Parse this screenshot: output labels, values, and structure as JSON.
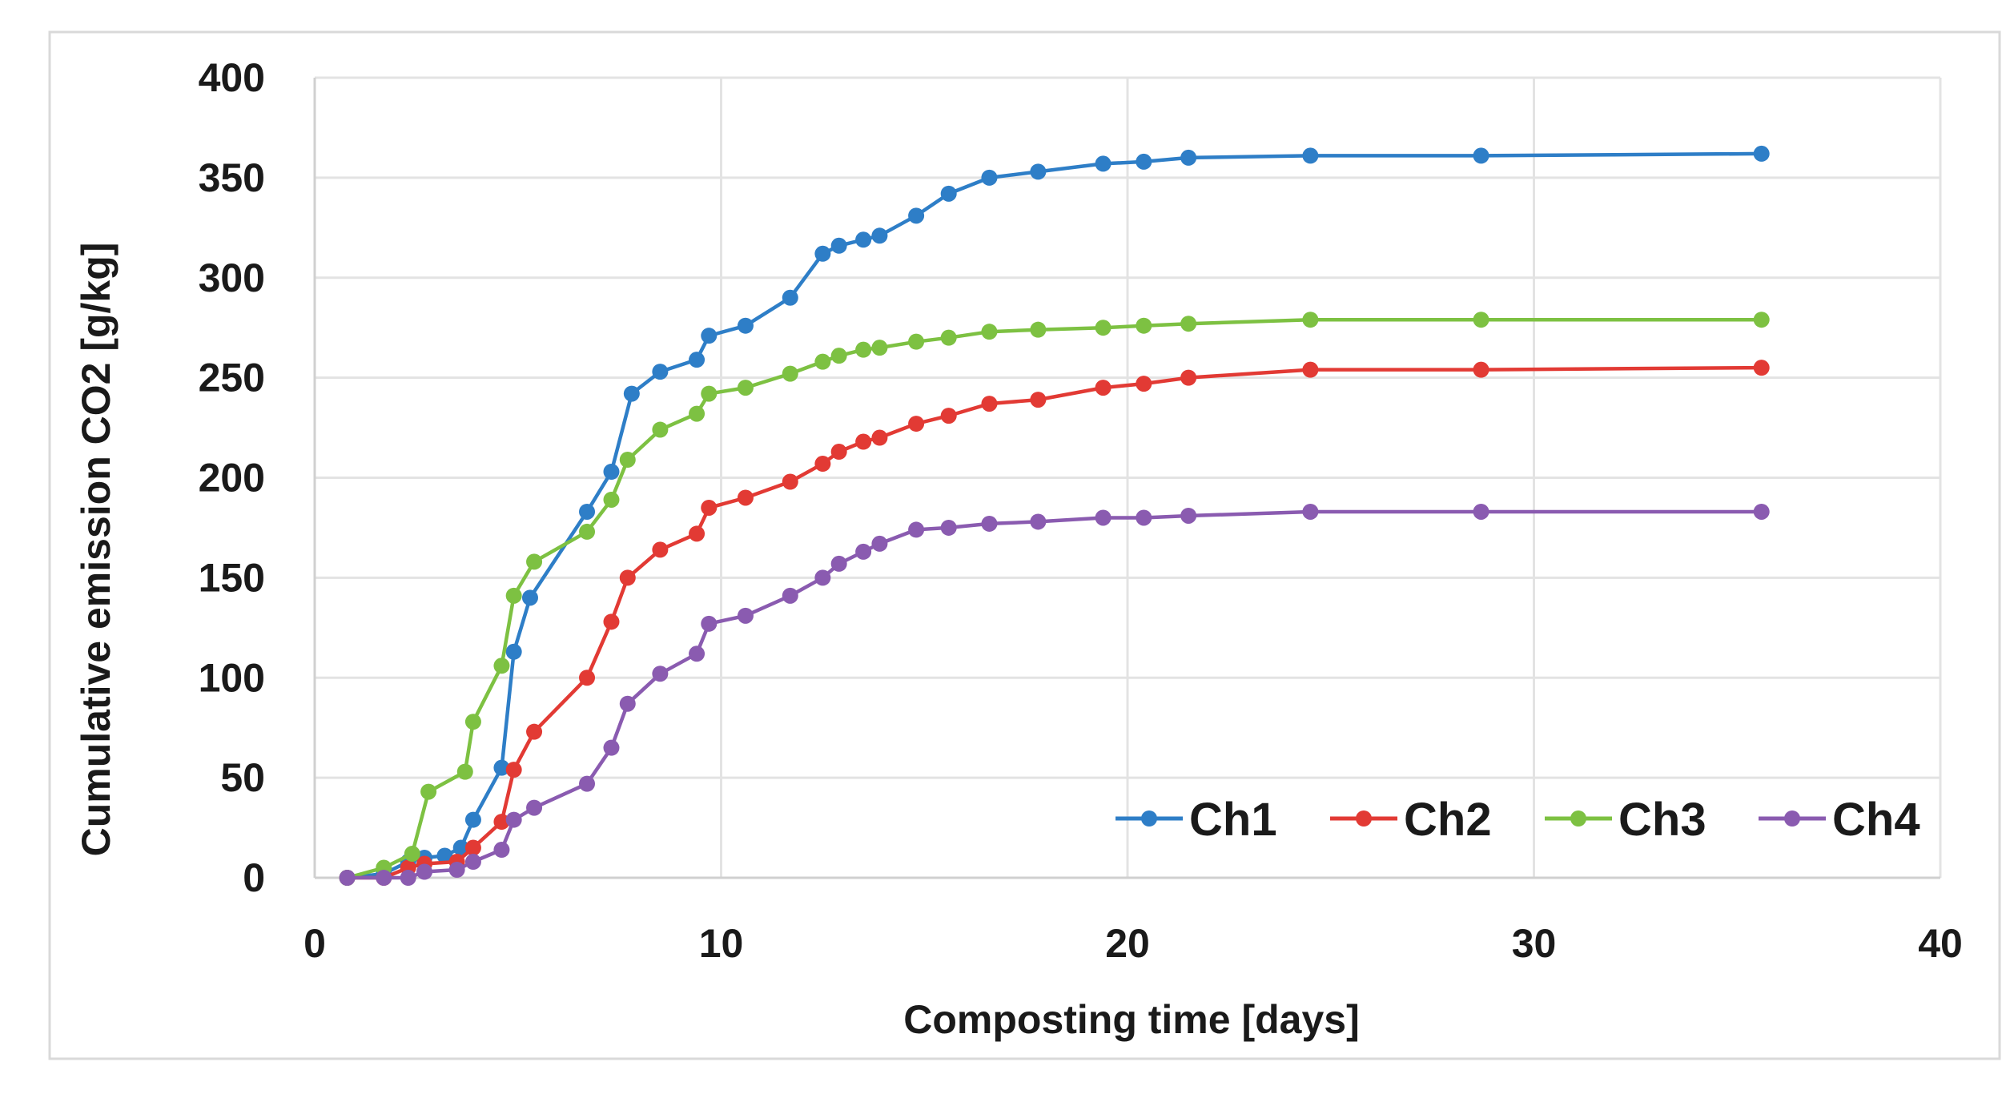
{
  "chart_data": {
    "type": "line",
    "title": "",
    "xlabel": "Composting time [days]",
    "ylabel": "Cumulative emission CO2 [g/kg]",
    "xlim": [
      0,
      40
    ],
    "ylim": [
      0,
      400
    ],
    "x_ticks": [
      0,
      10,
      20,
      30,
      40
    ],
    "y_ticks": [
      0,
      50,
      100,
      150,
      200,
      250,
      300,
      350,
      400
    ],
    "grid": true,
    "legend_position": "bottom-right",
    "series": [
      {
        "name": "Ch1",
        "color": "#2e7ec7",
        "points": [
          [
            0.8,
            0
          ],
          [
            1.7,
            2
          ],
          [
            2.3,
            8
          ],
          [
            2.7,
            10
          ],
          [
            3.2,
            11
          ],
          [
            3.6,
            15
          ],
          [
            3.9,
            29
          ],
          [
            4.6,
            55
          ],
          [
            4.9,
            113
          ],
          [
            5.3,
            140
          ],
          [
            6.7,
            183
          ],
          [
            7.3,
            203
          ],
          [
            7.8,
            242
          ],
          [
            8.5,
            253
          ],
          [
            9.4,
            259
          ],
          [
            9.7,
            271
          ],
          [
            10.6,
            276
          ],
          [
            11.7,
            290
          ],
          [
            12.5,
            312
          ],
          [
            12.9,
            316
          ],
          [
            13.5,
            319
          ],
          [
            13.9,
            321
          ],
          [
            14.8,
            331
          ],
          [
            15.6,
            342
          ],
          [
            16.6,
            350
          ],
          [
            17.8,
            353
          ],
          [
            19.4,
            357
          ],
          [
            20.4,
            358
          ],
          [
            21.5,
            360
          ],
          [
            24.5,
            361
          ],
          [
            28.7,
            361
          ],
          [
            35.6,
            362
          ]
        ]
      },
      {
        "name": "Ch2",
        "color": "#e23a34",
        "points": [
          [
            0.8,
            0
          ],
          [
            1.7,
            0
          ],
          [
            2.3,
            5
          ],
          [
            2.7,
            7
          ],
          [
            3.5,
            8
          ],
          [
            3.9,
            15
          ],
          [
            4.6,
            28
          ],
          [
            4.9,
            54
          ],
          [
            5.4,
            73
          ],
          [
            6.7,
            100
          ],
          [
            7.3,
            128
          ],
          [
            7.7,
            150
          ],
          [
            8.5,
            164
          ],
          [
            9.4,
            172
          ],
          [
            9.7,
            185
          ],
          [
            10.6,
            190
          ],
          [
            11.7,
            198
          ],
          [
            12.5,
            207
          ],
          [
            12.9,
            213
          ],
          [
            13.5,
            218
          ],
          [
            13.9,
            220
          ],
          [
            14.8,
            227
          ],
          [
            15.6,
            231
          ],
          [
            16.6,
            237
          ],
          [
            17.8,
            239
          ],
          [
            19.4,
            245
          ],
          [
            20.4,
            247
          ],
          [
            21.5,
            250
          ],
          [
            24.5,
            254
          ],
          [
            28.7,
            254
          ],
          [
            35.6,
            255
          ]
        ]
      },
      {
        "name": "Ch3",
        "color": "#7dc142",
        "points": [
          [
            0.8,
            0
          ],
          [
            1.7,
            5
          ],
          [
            2.4,
            12
          ],
          [
            2.8,
            43
          ],
          [
            3.7,
            53
          ],
          [
            3.9,
            78
          ],
          [
            4.6,
            106
          ],
          [
            4.9,
            141
          ],
          [
            5.4,
            158
          ],
          [
            6.7,
            173
          ],
          [
            7.3,
            189
          ],
          [
            7.7,
            209
          ],
          [
            8.5,
            224
          ],
          [
            9.4,
            232
          ],
          [
            9.7,
            242
          ],
          [
            10.6,
            245
          ],
          [
            11.7,
            252
          ],
          [
            12.5,
            258
          ],
          [
            12.9,
            261
          ],
          [
            13.5,
            264
          ],
          [
            13.9,
            265
          ],
          [
            14.8,
            268
          ],
          [
            15.6,
            270
          ],
          [
            16.6,
            273
          ],
          [
            17.8,
            274
          ],
          [
            19.4,
            275
          ],
          [
            20.4,
            276
          ],
          [
            21.5,
            277
          ],
          [
            24.5,
            279
          ],
          [
            28.7,
            279
          ],
          [
            35.6,
            279
          ]
        ]
      },
      {
        "name": "Ch4",
        "color": "#8a5bb0",
        "points": [
          [
            0.8,
            0
          ],
          [
            1.7,
            0
          ],
          [
            2.3,
            0
          ],
          [
            2.7,
            3
          ],
          [
            3.5,
            4
          ],
          [
            3.9,
            8
          ],
          [
            4.6,
            14
          ],
          [
            4.9,
            29
          ],
          [
            5.4,
            35
          ],
          [
            6.7,
            47
          ],
          [
            7.3,
            65
          ],
          [
            7.7,
            87
          ],
          [
            8.5,
            102
          ],
          [
            9.4,
            112
          ],
          [
            9.7,
            127
          ],
          [
            10.6,
            131
          ],
          [
            11.7,
            141
          ],
          [
            12.5,
            150
          ],
          [
            12.9,
            157
          ],
          [
            13.5,
            163
          ],
          [
            13.9,
            167
          ],
          [
            14.8,
            174
          ],
          [
            15.6,
            175
          ],
          [
            16.6,
            177
          ],
          [
            17.8,
            178
          ],
          [
            19.4,
            180
          ],
          [
            20.4,
            180
          ],
          [
            21.5,
            181
          ],
          [
            24.5,
            183
          ],
          [
            28.7,
            183
          ],
          [
            35.6,
            183
          ]
        ]
      }
    ]
  }
}
